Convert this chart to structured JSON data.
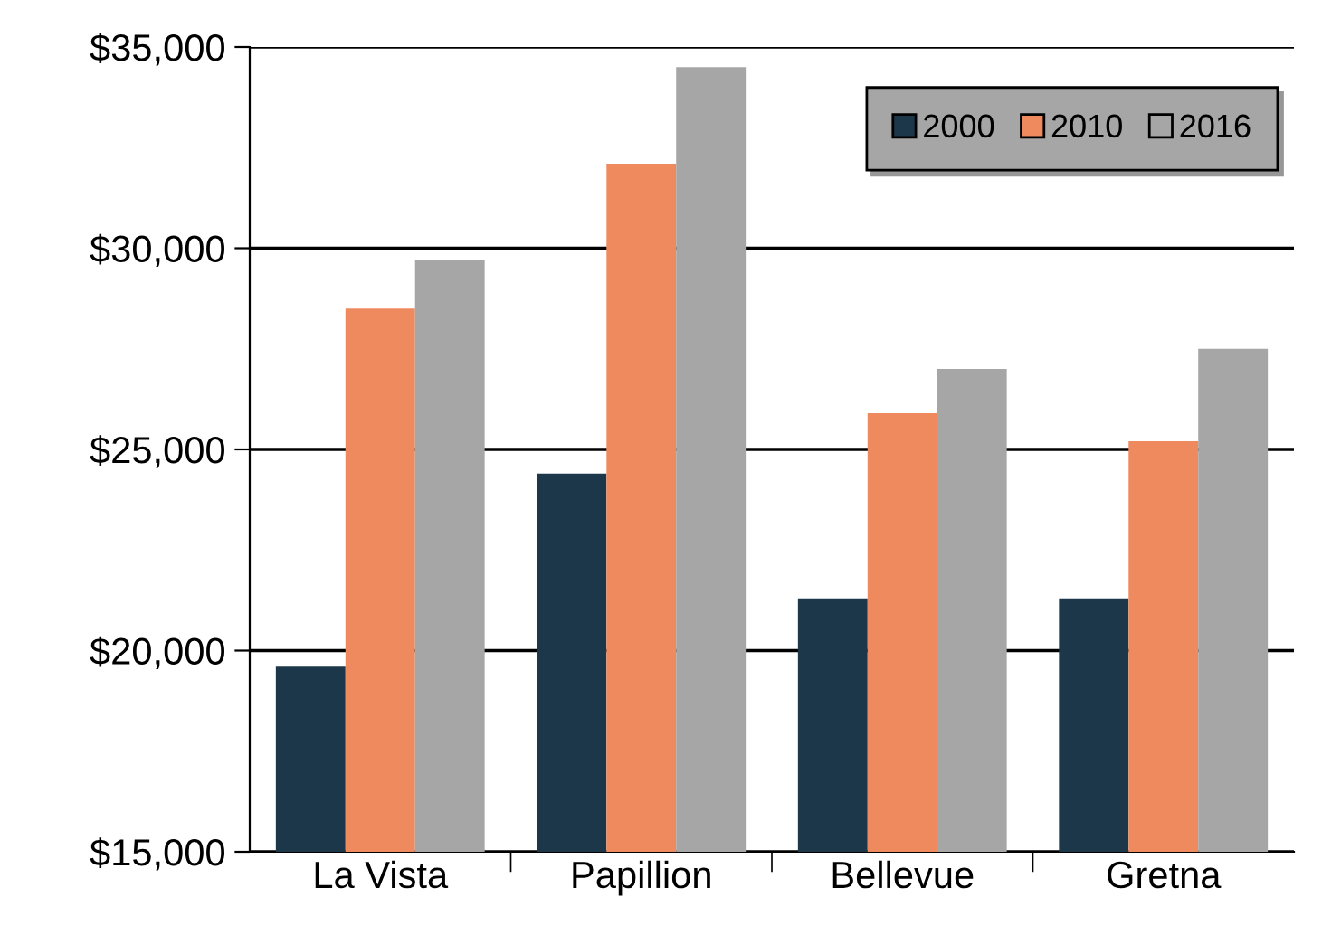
{
  "chart_data": {
    "type": "bar",
    "categories": [
      "La Vista",
      "Papillion",
      "Bellevue",
      "Gretna"
    ],
    "series": [
      {
        "name": "2000",
        "color": "#1c3749",
        "values": [
          19600,
          24400,
          21300,
          21300
        ]
      },
      {
        "name": "2010",
        "color": "#ef8a5f",
        "values": [
          28500,
          32100,
          25900,
          25200
        ]
      },
      {
        "name": "2016",
        "color": "#a6a6a6",
        "values": [
          29700,
          34500,
          27000,
          27500
        ]
      }
    ],
    "ylim": [
      15000,
      35000
    ],
    "yticks": [
      {
        "value": 15000,
        "label": "$15,000"
      },
      {
        "value": 20000,
        "label": "$20,000"
      },
      {
        "value": 25000,
        "label": "$25,000"
      },
      {
        "value": 30000,
        "label": "$30,000"
      },
      {
        "value": 35000,
        "label": "$35,000"
      }
    ],
    "grid": "y",
    "legend": "top right"
  }
}
